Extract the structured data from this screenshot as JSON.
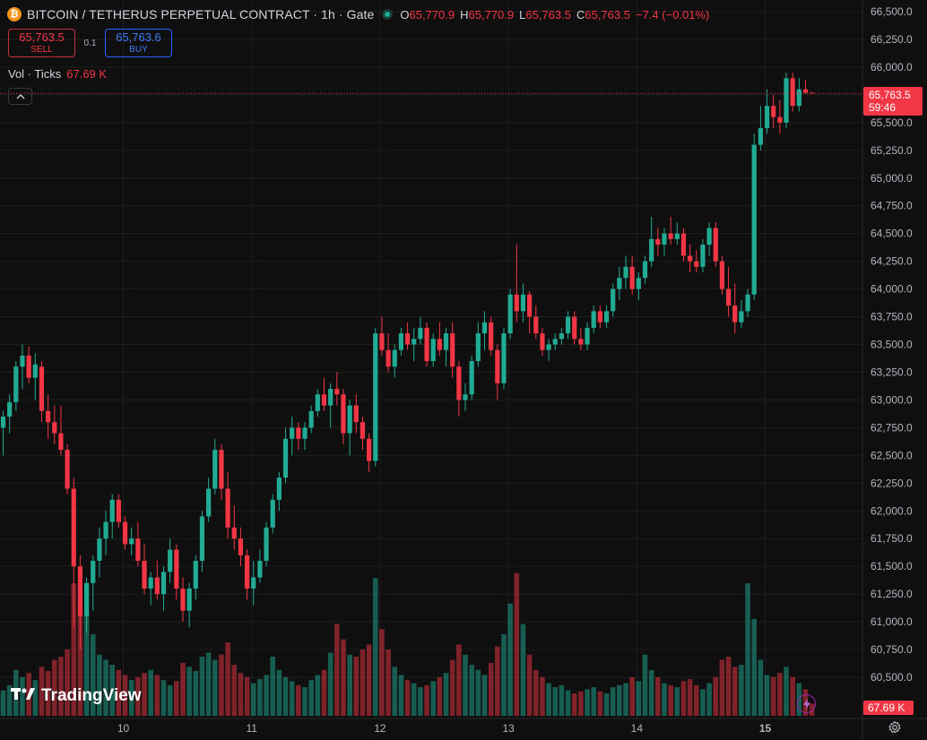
{
  "header": {
    "coin_icon": "bitcoin-icon",
    "coin_glyph": "₿",
    "symbol": "BITCOIN / TETHERUS PERPETUAL CONTRACT",
    "interval": "1h",
    "exchange": "Gate",
    "title_line": "BITCOIN / TETHERUS PERPETUAL CONTRACT · 1h · Gate",
    "status_icon": "market-open-dot-icon",
    "ohlc": {
      "o_label": "O",
      "o": "65,770.9",
      "h_label": "H",
      "h": "65,770.9",
      "l_label": "L",
      "l": "65,763.5",
      "c_label": "C",
      "c": "65,763.5",
      "change": "−7.4 (−0.01%)"
    }
  },
  "trade": {
    "sell_price": "65,763.5",
    "sell_label": "SELL",
    "spread": "0.1",
    "buy_price": "65,763.6",
    "buy_label": "BUY"
  },
  "volume_legend": {
    "label": "Vol · Ticks",
    "value": "67.69 K"
  },
  "collapse_icon": "chevron-up-icon",
  "last_price": {
    "value": "65,763.5",
    "countdown": "59:46"
  },
  "last_volume": "67.69 K",
  "branding": {
    "logo_icon": "tradingview-logo-icon",
    "name": "TradingView"
  },
  "colors": {
    "up": "#22ab94",
    "down": "#f23645",
    "background": "#0f0f0f",
    "grid": "#1e1e1e",
    "sell_border": "#c2303d",
    "buy_border": "#2962ff"
  },
  "chart_data": {
    "type": "candlestick",
    "interval": "1h",
    "grid": true,
    "y_axis": {
      "position": "right",
      "ticks": [
        "66,500.0",
        "66,250.0",
        "66,000.0",
        "65,750.0",
        "65,500.0",
        "65,250.0",
        "65,000.0",
        "64,750.0",
        "64,500.0",
        "64,250.0",
        "64,000.0",
        "63,750.0",
        "63,500.0",
        "63,250.0",
        "63,000.0",
        "62,750.0",
        "62,500.0",
        "62,250.0",
        "62,000.0",
        "61,750.0",
        "61,500.0",
        "61,250.0",
        "61,000.0",
        "60,750.0",
        "60,500.0"
      ],
      "ylim": [
        60250,
        66600
      ]
    },
    "x_axis": {
      "ticks": [
        "10",
        "11",
        "12",
        "13",
        "14",
        "15"
      ],
      "tick_candle_index": [
        19,
        39,
        59,
        79,
        99,
        119
      ]
    },
    "volume_ylim": [
      0,
      145
    ],
    "candles": [
      {
        "o": 62750,
        "h": 62900,
        "l": 62500,
        "c": 62850,
        "v": 25
      },
      {
        "o": 62850,
        "h": 63050,
        "l": 62700,
        "c": 62980,
        "v": 30
      },
      {
        "o": 62980,
        "h": 63350,
        "l": 62900,
        "c": 63300,
        "v": 45
      },
      {
        "o": 63300,
        "h": 63500,
        "l": 63100,
        "c": 63400,
        "v": 38
      },
      {
        "o": 63400,
        "h": 63480,
        "l": 63150,
        "c": 63200,
        "v": 42
      },
      {
        "o": 63200,
        "h": 63420,
        "l": 63000,
        "c": 63320,
        "v": 35
      },
      {
        "o": 63300,
        "h": 63350,
        "l": 62800,
        "c": 62900,
        "v": 48
      },
      {
        "o": 62900,
        "h": 63050,
        "l": 62650,
        "c": 62800,
        "v": 44
      },
      {
        "o": 62800,
        "h": 62950,
        "l": 62600,
        "c": 62700,
        "v": 55
      },
      {
        "o": 62700,
        "h": 62950,
        "l": 62500,
        "c": 62550,
        "v": 58
      },
      {
        "o": 62550,
        "h": 62600,
        "l": 62150,
        "c": 62200,
        "v": 65
      },
      {
        "o": 62200,
        "h": 62300,
        "l": 60950,
        "c": 61500,
        "v": 130
      },
      {
        "o": 61500,
        "h": 61600,
        "l": 60750,
        "c": 61050,
        "v": 110
      },
      {
        "o": 61050,
        "h": 61400,
        "l": 60900,
        "c": 61350,
        "v": 100
      },
      {
        "o": 61350,
        "h": 61600,
        "l": 61100,
        "c": 61550,
        "v": 80
      },
      {
        "o": 61550,
        "h": 61850,
        "l": 61400,
        "c": 61750,
        "v": 60
      },
      {
        "o": 61750,
        "h": 62000,
        "l": 61600,
        "c": 61900,
        "v": 55
      },
      {
        "o": 61900,
        "h": 62150,
        "l": 61750,
        "c": 62100,
        "v": 50
      },
      {
        "o": 62100,
        "h": 62150,
        "l": 61850,
        "c": 61900,
        "v": 45
      },
      {
        "o": 61900,
        "h": 61950,
        "l": 61650,
        "c": 61700,
        "v": 40
      },
      {
        "o": 61700,
        "h": 61850,
        "l": 61600,
        "c": 61750,
        "v": 35
      },
      {
        "o": 61750,
        "h": 61900,
        "l": 61500,
        "c": 61550,
        "v": 38
      },
      {
        "o": 61550,
        "h": 61700,
        "l": 61250,
        "c": 61300,
        "v": 42
      },
      {
        "o": 61300,
        "h": 61450,
        "l": 61150,
        "c": 61400,
        "v": 45
      },
      {
        "o": 61400,
        "h": 61550,
        "l": 61200,
        "c": 61250,
        "v": 40
      },
      {
        "o": 61250,
        "h": 61500,
        "l": 61100,
        "c": 61450,
        "v": 35
      },
      {
        "o": 61450,
        "h": 61750,
        "l": 61350,
        "c": 61650,
        "v": 30
      },
      {
        "o": 61650,
        "h": 61700,
        "l": 61200,
        "c": 61300,
        "v": 34
      },
      {
        "o": 61300,
        "h": 61400,
        "l": 61000,
        "c": 61100,
        "v": 52
      },
      {
        "o": 61100,
        "h": 61350,
        "l": 60950,
        "c": 61300,
        "v": 48
      },
      {
        "o": 61300,
        "h": 61600,
        "l": 61200,
        "c": 61550,
        "v": 44
      },
      {
        "o": 61550,
        "h": 62000,
        "l": 61450,
        "c": 61950,
        "v": 58
      },
      {
        "o": 61950,
        "h": 62300,
        "l": 61900,
        "c": 62200,
        "v": 62
      },
      {
        "o": 62200,
        "h": 62650,
        "l": 62150,
        "c": 62550,
        "v": 55
      },
      {
        "o": 62550,
        "h": 62600,
        "l": 62100,
        "c": 62200,
        "v": 60
      },
      {
        "o": 62200,
        "h": 62350,
        "l": 61750,
        "c": 61850,
        "v": 72
      },
      {
        "o": 61850,
        "h": 62050,
        "l": 61650,
        "c": 61750,
        "v": 50
      },
      {
        "o": 61750,
        "h": 61850,
        "l": 61500,
        "c": 61600,
        "v": 42
      },
      {
        "o": 61600,
        "h": 61650,
        "l": 61200,
        "c": 61300,
        "v": 38
      },
      {
        "o": 61300,
        "h": 61550,
        "l": 61150,
        "c": 61400,
        "v": 32
      },
      {
        "o": 61400,
        "h": 61650,
        "l": 61350,
        "c": 61550,
        "v": 36
      },
      {
        "o": 61550,
        "h": 61900,
        "l": 61500,
        "c": 61850,
        "v": 40
      },
      {
        "o": 61850,
        "h": 62150,
        "l": 61800,
        "c": 62100,
        "v": 58
      },
      {
        "o": 62100,
        "h": 62350,
        "l": 62000,
        "c": 62300,
        "v": 45
      },
      {
        "o": 62300,
        "h": 62750,
        "l": 62250,
        "c": 62650,
        "v": 38
      },
      {
        "o": 62650,
        "h": 62850,
        "l": 62500,
        "c": 62750,
        "v": 34
      },
      {
        "o": 62750,
        "h": 62800,
        "l": 62550,
        "c": 62650,
        "v": 30
      },
      {
        "o": 62650,
        "h": 62800,
        "l": 62550,
        "c": 62750,
        "v": 28
      },
      {
        "o": 62750,
        "h": 62950,
        "l": 62700,
        "c": 62900,
        "v": 35
      },
      {
        "o": 62900,
        "h": 63100,
        "l": 62850,
        "c": 63050,
        "v": 40
      },
      {
        "o": 63050,
        "h": 63200,
        "l": 62900,
        "c": 62950,
        "v": 45
      },
      {
        "o": 62950,
        "h": 63150,
        "l": 62750,
        "c": 63100,
        "v": 62
      },
      {
        "o": 63100,
        "h": 63250,
        "l": 62950,
        "c": 63050,
        "v": 90
      },
      {
        "o": 63050,
        "h": 63100,
        "l": 62600,
        "c": 62700,
        "v": 75
      },
      {
        "o": 62700,
        "h": 63000,
        "l": 62500,
        "c": 62950,
        "v": 60
      },
      {
        "o": 62950,
        "h": 63050,
        "l": 62700,
        "c": 62800,
        "v": 58
      },
      {
        "o": 62800,
        "h": 62850,
        "l": 62550,
        "c": 62650,
        "v": 65
      },
      {
        "o": 62650,
        "h": 62700,
        "l": 62350,
        "c": 62450,
        "v": 70
      },
      {
        "o": 62450,
        "h": 63650,
        "l": 62400,
        "c": 63600,
        "v": 135
      },
      {
        "o": 63600,
        "h": 63750,
        "l": 63400,
        "c": 63450,
        "v": 85
      },
      {
        "o": 63450,
        "h": 63600,
        "l": 63250,
        "c": 63300,
        "v": 65
      },
      {
        "o": 63300,
        "h": 63500,
        "l": 63200,
        "c": 63450,
        "v": 48
      },
      {
        "o": 63450,
        "h": 63650,
        "l": 63400,
        "c": 63600,
        "v": 40
      },
      {
        "o": 63600,
        "h": 63700,
        "l": 63450,
        "c": 63500,
        "v": 35
      },
      {
        "o": 63500,
        "h": 63650,
        "l": 63350,
        "c": 63550,
        "v": 32
      },
      {
        "o": 63550,
        "h": 63750,
        "l": 63500,
        "c": 63650,
        "v": 28
      },
      {
        "o": 63650,
        "h": 63700,
        "l": 63300,
        "c": 63350,
        "v": 30
      },
      {
        "o": 63350,
        "h": 63600,
        "l": 63300,
        "c": 63550,
        "v": 34
      },
      {
        "o": 63550,
        "h": 63700,
        "l": 63400,
        "c": 63450,
        "v": 38
      },
      {
        "o": 63450,
        "h": 63650,
        "l": 63300,
        "c": 63600,
        "v": 42
      },
      {
        "o": 63600,
        "h": 63700,
        "l": 63200,
        "c": 63300,
        "v": 55
      },
      {
        "o": 63300,
        "h": 63350,
        "l": 62850,
        "c": 63000,
        "v": 70
      },
      {
        "o": 63000,
        "h": 63150,
        "l": 62900,
        "c": 63050,
        "v": 60
      },
      {
        "o": 63050,
        "h": 63400,
        "l": 63000,
        "c": 63350,
        "v": 50
      },
      {
        "o": 63350,
        "h": 63700,
        "l": 63300,
        "c": 63600,
        "v": 45
      },
      {
        "o": 63600,
        "h": 63800,
        "l": 63450,
        "c": 63700,
        "v": 40
      },
      {
        "o": 63700,
        "h": 63750,
        "l": 63400,
        "c": 63450,
        "v": 52
      },
      {
        "o": 63450,
        "h": 63500,
        "l": 63000,
        "c": 63150,
        "v": 68
      },
      {
        "o": 63150,
        "h": 63650,
        "l": 63100,
        "c": 63600,
        "v": 80
      },
      {
        "o": 63600,
        "h": 64000,
        "l": 63550,
        "c": 63950,
        "v": 110
      },
      {
        "o": 63950,
        "h": 64400,
        "l": 63700,
        "c": 63800,
        "v": 140
      },
      {
        "o": 63800,
        "h": 64050,
        "l": 63700,
        "c": 63950,
        "v": 90
      },
      {
        "o": 63950,
        "h": 63980,
        "l": 63600,
        "c": 63750,
        "v": 60
      },
      {
        "o": 63750,
        "h": 63850,
        "l": 63550,
        "c": 63600,
        "v": 45
      },
      {
        "o": 63600,
        "h": 63650,
        "l": 63400,
        "c": 63450,
        "v": 38
      },
      {
        "o": 63450,
        "h": 63550,
        "l": 63350,
        "c": 63500,
        "v": 32
      },
      {
        "o": 63500,
        "h": 63600,
        "l": 63450,
        "c": 63550,
        "v": 28
      },
      {
        "o": 63550,
        "h": 63650,
        "l": 63500,
        "c": 63600,
        "v": 30
      },
      {
        "o": 63600,
        "h": 63800,
        "l": 63550,
        "c": 63750,
        "v": 25
      },
      {
        "o": 63750,
        "h": 63800,
        "l": 63500,
        "c": 63550,
        "v": 22
      },
      {
        "o": 63550,
        "h": 63650,
        "l": 63450,
        "c": 63500,
        "v": 24
      },
      {
        "o": 63500,
        "h": 63700,
        "l": 63450,
        "c": 63650,
        "v": 26
      },
      {
        "o": 63650,
        "h": 63850,
        "l": 63600,
        "c": 63800,
        "v": 28
      },
      {
        "o": 63800,
        "h": 63850,
        "l": 63650,
        "c": 63700,
        "v": 24
      },
      {
        "o": 63700,
        "h": 63850,
        "l": 63650,
        "c": 63800,
        "v": 22
      },
      {
        "o": 63800,
        "h": 64050,
        "l": 63750,
        "c": 64000,
        "v": 28
      },
      {
        "o": 64000,
        "h": 64200,
        "l": 63900,
        "c": 64100,
        "v": 30
      },
      {
        "o": 64100,
        "h": 64300,
        "l": 64000,
        "c": 64200,
        "v": 32
      },
      {
        "o": 64200,
        "h": 64300,
        "l": 63950,
        "c": 64000,
        "v": 38
      },
      {
        "o": 64000,
        "h": 64150,
        "l": 63900,
        "c": 64100,
        "v": 34
      },
      {
        "o": 64100,
        "h": 64300,
        "l": 64050,
        "c": 64250,
        "v": 60
      },
      {
        "o": 64250,
        "h": 64650,
        "l": 64200,
        "c": 64450,
        "v": 45
      },
      {
        "o": 64450,
        "h": 64550,
        "l": 64300,
        "c": 64400,
        "v": 38
      },
      {
        "o": 64400,
        "h": 64550,
        "l": 64300,
        "c": 64500,
        "v": 32
      },
      {
        "o": 64500,
        "h": 64650,
        "l": 64400,
        "c": 64450,
        "v": 30
      },
      {
        "o": 64450,
        "h": 64600,
        "l": 64400,
        "c": 64500,
        "v": 28
      },
      {
        "o": 64500,
        "h": 64550,
        "l": 64250,
        "c": 64300,
        "v": 34
      },
      {
        "o": 64300,
        "h": 64400,
        "l": 64150,
        "c": 64250,
        "v": 36
      },
      {
        "o": 64250,
        "h": 64350,
        "l": 64150,
        "c": 64200,
        "v": 30
      },
      {
        "o": 64200,
        "h": 64450,
        "l": 64150,
        "c": 64400,
        "v": 26
      },
      {
        "o": 64400,
        "h": 64600,
        "l": 64300,
        "c": 64550,
        "v": 32
      },
      {
        "o": 64550,
        "h": 64600,
        "l": 64200,
        "c": 64250,
        "v": 38
      },
      {
        "o": 64250,
        "h": 64300,
        "l": 63950,
        "c": 64000,
        "v": 55
      },
      {
        "o": 64000,
        "h": 64200,
        "l": 63750,
        "c": 63850,
        "v": 58
      },
      {
        "o": 63850,
        "h": 64050,
        "l": 63600,
        "c": 63700,
        "v": 48
      },
      {
        "o": 63700,
        "h": 63900,
        "l": 63650,
        "c": 63800,
        "v": 50
      },
      {
        "o": 63800,
        "h": 64000,
        "l": 63750,
        "c": 63950,
        "v": 130
      },
      {
        "o": 63950,
        "h": 65400,
        "l": 63900,
        "c": 65300,
        "v": 95
      },
      {
        "o": 65300,
        "h": 65650,
        "l": 65250,
        "c": 65450,
        "v": 55
      },
      {
        "o": 65450,
        "h": 65800,
        "l": 65400,
        "c": 65650,
        "v": 40
      },
      {
        "o": 65650,
        "h": 65750,
        "l": 65450,
        "c": 65550,
        "v": 38
      },
      {
        "o": 65550,
        "h": 65700,
        "l": 65400,
        "c": 65500,
        "v": 42
      },
      {
        "o": 65500,
        "h": 65950,
        "l": 65450,
        "c": 65900,
        "v": 48
      },
      {
        "o": 65900,
        "h": 65950,
        "l": 65600,
        "c": 65650,
        "v": 38
      },
      {
        "o": 65650,
        "h": 65900,
        "l": 65600,
        "c": 65800,
        "v": 32
      },
      {
        "o": 65800,
        "h": 65880,
        "l": 65760,
        "c": 65770,
        "v": 26
      },
      {
        "o": 65770.9,
        "h": 65770.9,
        "l": 65763.5,
        "c": 65763.5,
        "v": 12
      }
    ]
  }
}
